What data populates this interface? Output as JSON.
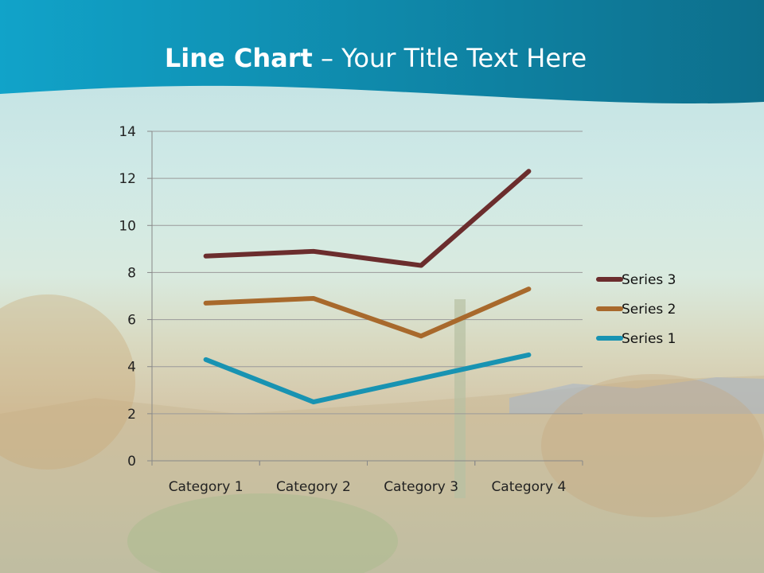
{
  "slide": {
    "title_bold": "Line Chart",
    "title_rest": " – Your Title Text Here"
  },
  "chart_data": {
    "type": "line",
    "title": "",
    "categories": [
      "Category 1",
      "Category 2",
      "Category 3",
      "Category 4"
    ],
    "series": [
      {
        "name": "Series 1",
        "values": [
          4.3,
          2.5,
          3.5,
          4.5
        ],
        "color": "#1893b2"
      },
      {
        "name": "Series 2",
        "values": [
          6.7,
          6.9,
          5.3,
          7.3
        ],
        "color": "#a8692c"
      },
      {
        "name": "Series 3",
        "values": [
          8.7,
          8.9,
          8.3,
          12.3
        ],
        "color": "#6b2d2d"
      }
    ],
    "ylim": [
      0,
      14
    ],
    "yticks": [
      "0",
      "2",
      "4",
      "6",
      "8",
      "10",
      "12",
      "14"
    ],
    "grid": true,
    "legend": "right"
  }
}
